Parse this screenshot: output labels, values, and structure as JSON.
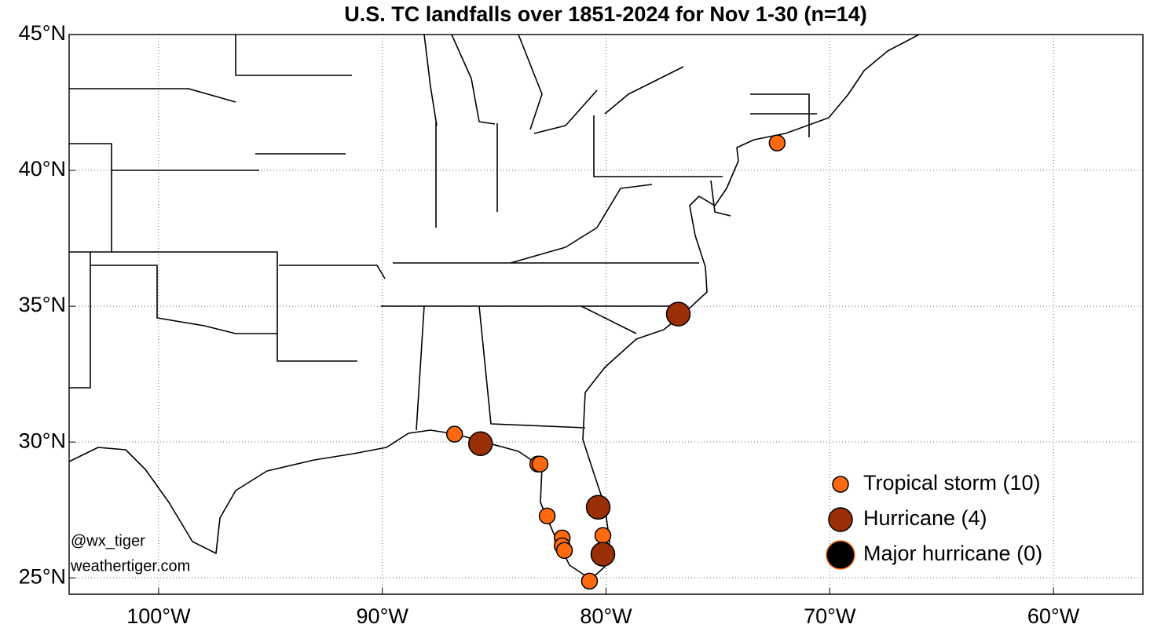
{
  "chart_data": {
    "type": "scatter",
    "title": "U.S. TC landfalls over 1851-2024 for Nov 1-30 (n=14)",
    "xlim": [
      -104,
      -56
    ],
    "ylim": [
      24.4,
      45
    ],
    "xticks": [
      {
        "value": -100,
        "label": "100°W"
      },
      {
        "value": -90,
        "label": "90°W"
      },
      {
        "value": -80,
        "label": "80°W"
      },
      {
        "value": -70,
        "label": "70°W"
      },
      {
        "value": -60,
        "label": "60°W"
      }
    ],
    "yticks": [
      {
        "value": 25,
        "label": "25°N"
      },
      {
        "value": 30,
        "label": "30°N"
      },
      {
        "value": 35,
        "label": "35°N"
      },
      {
        "value": 40,
        "label": "40°N"
      },
      {
        "value": 45,
        "label": "45°N"
      }
    ],
    "grid": true,
    "legend": "lower right",
    "series": [
      {
        "name": "Tropical storm (10)",
        "color": "#ff6a10",
        "edge": "#000000",
        "size": 10,
        "x": [
          -72.35,
          -86.77,
          -83.05,
          -82.95,
          -82.63,
          -81.96,
          -81.96,
          -81.86,
          -80.14,
          -80.74
        ],
        "values": [
          41.01,
          30.29,
          29.19,
          29.19,
          27.28,
          26.47,
          26.18,
          26.01,
          26.56,
          24.88
        ]
      },
      {
        "name": "Hurricane (4)",
        "color": "#9a2e05",
        "edge": "#000000",
        "size": 15,
        "x": [
          -76.77,
          -85.61,
          -80.35,
          -80.14
        ],
        "values": [
          34.71,
          29.94,
          27.6,
          25.87
        ]
      },
      {
        "name": "Major hurricane (0)",
        "color": "#000000",
        "edge": "#ff6a10",
        "size": 18,
        "x": [],
        "values": []
      }
    ],
    "annotations": [
      "@wx_tiger",
      "weathertiger.com"
    ]
  }
}
